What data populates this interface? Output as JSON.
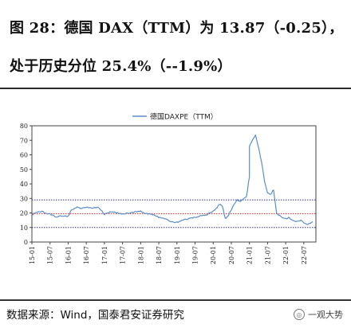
{
  "header": {
    "title": "图 28：德国 DAX（TTM）为 13.87（-0.25），处于历史分位 25.4%（--1.9%）"
  },
  "footer": {
    "source": "数据来源：Wind，国泰君安证券研究",
    "brand": "一观大势"
  },
  "chart_data": {
    "type": "line",
    "title": "",
    "legend": "德国DAXPE（TTM）",
    "legend_position": "top-center",
    "xlabel": "",
    "ylabel": "",
    "ylim": [
      0,
      80
    ],
    "yticks": [
      0,
      10,
      20,
      30,
      40,
      50,
      60,
      70,
      80
    ],
    "xticks": [
      "15-01",
      "15-07",
      "16-01",
      "16-07",
      "17-01",
      "17-07",
      "18-01",
      "18-07",
      "19-01",
      "19-07",
      "20-01",
      "20-07",
      "21-01",
      "21-07",
      "22-01",
      "22-07"
    ],
    "colors": {
      "series": "#5b8ec9",
      "upper_band": "#333399",
      "mean": "#e02020",
      "lower_band": "#333399"
    },
    "reference_lines": [
      {
        "value": 29,
        "color": "#333399",
        "style": "dotted"
      },
      {
        "value": 19.5,
        "color": "#e02020",
        "style": "dotted"
      },
      {
        "value": 10,
        "color": "#333399",
        "style": "dotted"
      }
    ],
    "series": [
      {
        "x": [
          "2015-01",
          "2015-02",
          "2015-04",
          "2015-05",
          "2015-07",
          "2015-09",
          "2015-11",
          "2016-01",
          "2016-02",
          "2016-04",
          "2016-05",
          "2016-07",
          "2016-09",
          "2016-11",
          "2017-01",
          "2017-02",
          "2017-04",
          "2017-05",
          "2017-07",
          "2017-09",
          "2017-11",
          "2018-01",
          "2018-03",
          "2018-05",
          "2018-07",
          "2018-09",
          "2018-11",
          "2019-01",
          "2019-03",
          "2019-05",
          "2019-07",
          "2019-09",
          "2019-11",
          "2020-01",
          "2020-02",
          "2020-03",
          "2020-04",
          "2020-05",
          "2020-06",
          "2020-07",
          "2020-08",
          "2020-09",
          "2020-10",
          "2020-11",
          "2020-12",
          "2021-01",
          "2021-01",
          "2021-02",
          "2021-03",
          "2021-04",
          "2021-05",
          "2021-06",
          "2021-07",
          "2021-08",
          "2021-09",
          "2021-10",
          "2021-11",
          "2021-12",
          "2022-01",
          "2022-02",
          "2022-03",
          "2022-04",
          "2022-05",
          "2022-06",
          "2022-07",
          "2022-08",
          "2022-09",
          "2022-10"
        ],
        "y": [
          18.5,
          20,
          21,
          20.5,
          19,
          17.5,
          18,
          17.5,
          22,
          24,
          23,
          24,
          23.5,
          24,
          19,
          20,
          21,
          20,
          19.5,
          20,
          20.5,
          21,
          19.5,
          19,
          17,
          16,
          14,
          13.5,
          15,
          16,
          17,
          18,
          19,
          21,
          23,
          26,
          25,
          16,
          18,
          22,
          26,
          29,
          28,
          30,
          31,
          45,
          66,
          70,
          74,
          65,
          55,
          42,
          34,
          33,
          36,
          20,
          18,
          17,
          16,
          17,
          15,
          14,
          14,
          15,
          13,
          12,
          13,
          13.9
        ]
      }
    ]
  }
}
